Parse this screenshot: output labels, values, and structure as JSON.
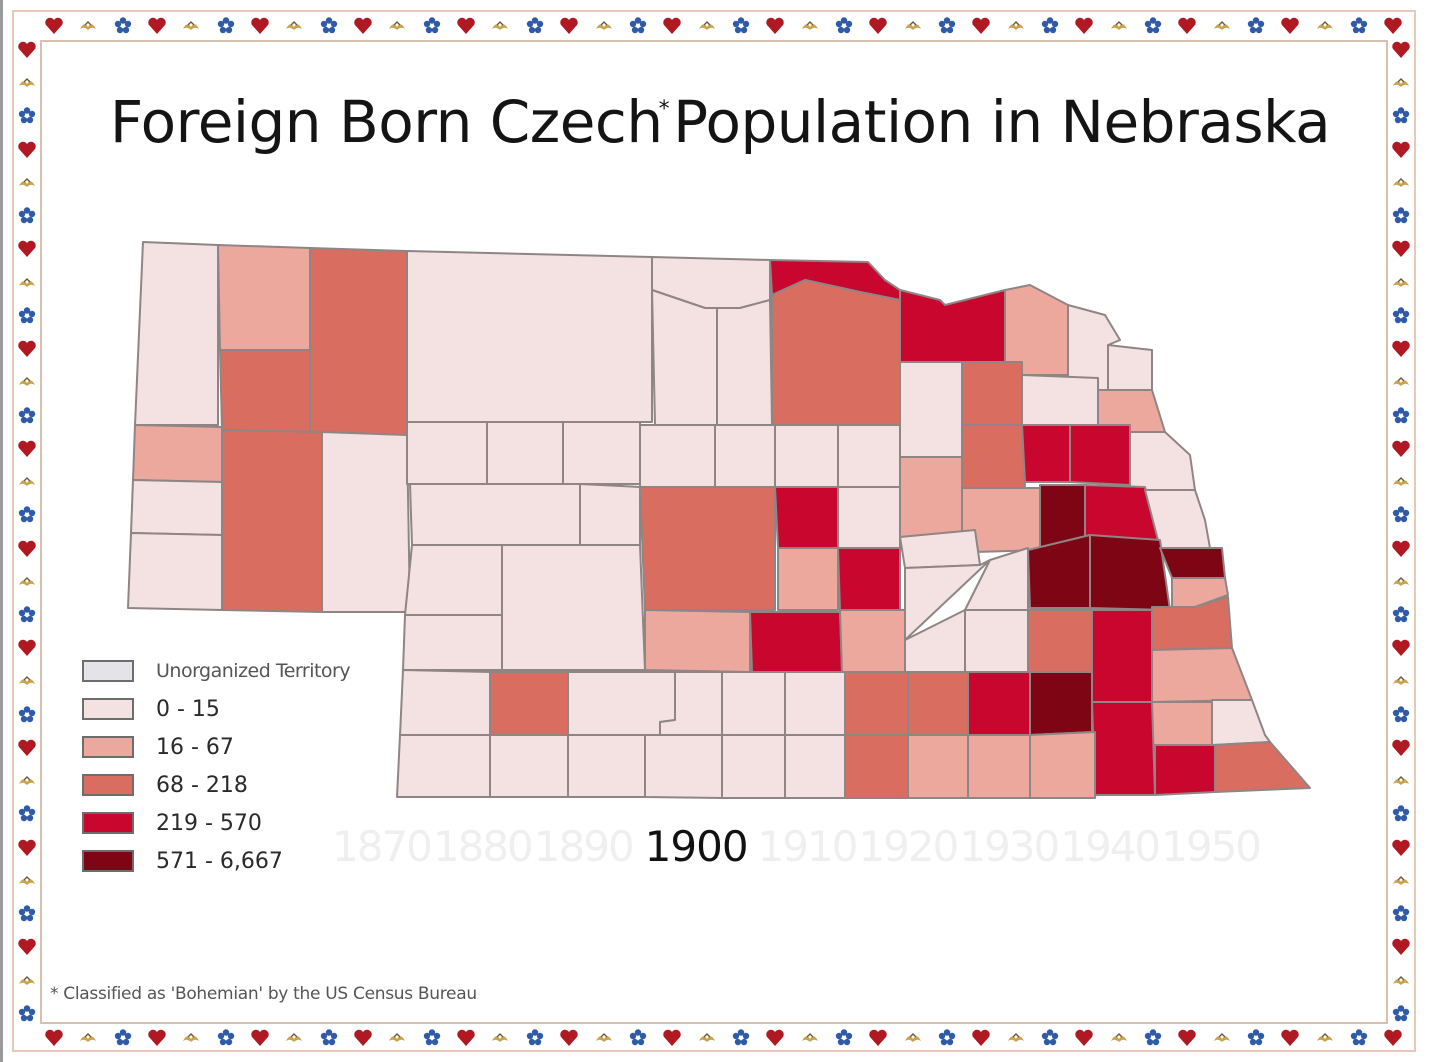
{
  "title": {
    "main_part1": "Foreign Born Czech",
    "asterisk": "*",
    "main_part2": "Population in Nebraska"
  },
  "legend": {
    "items": [
      {
        "label": "Unorganized Territory",
        "color": "#e4e4e8"
      },
      {
        "label": "0 - 15",
        "color": "#f4e2e2"
      },
      {
        "label": "16 - 67",
        "color": "#eda89d"
      },
      {
        "label": "68 - 218",
        "color": "#d96e60"
      },
      {
        "label": "219 - 570",
        "color": "#c8062e"
      },
      {
        "label": "571 - 6,667",
        "color": "#7d0514"
      }
    ]
  },
  "timeline": {
    "years": [
      "1870",
      "1880",
      "1890",
      "1900",
      "1910",
      "1920",
      "1930",
      "1940",
      "1950"
    ],
    "selected": "1900"
  },
  "footnote": "* Classified as 'Bohemian' by the US Census Bureau",
  "colors": {
    "county_border": "#8f8585",
    "frame": "#d9bfae",
    "heart": "#b01822",
    "flower": "#2f5aa8",
    "bird": "#c9a24a"
  },
  "chart_data": {
    "type": "choropleth",
    "title": "Foreign Born Czech* Population in Nebraska",
    "year": "1900",
    "classes": [
      "Unorganized Territory",
      "0 - 15",
      "16 - 67",
      "68 - 218",
      "219 - 570",
      "571 - 6,667"
    ],
    "class_colors": [
      "#e4e4e8",
      "#f4e2e2",
      "#eda89d",
      "#d96e60",
      "#c8062e",
      "#7d0514"
    ],
    "note": "* Classified as 'Bohemian' by the US Census Bureau",
    "counties": [
      {
        "id": "nw-1",
        "class": 1
      },
      {
        "id": "nw-2",
        "class": 2
      },
      {
        "id": "nw-3",
        "class": 3
      },
      {
        "id": "nw-4",
        "class": 3
      },
      {
        "id": "panhandle-w1",
        "class": 2
      },
      {
        "id": "panhandle-w2",
        "class": 1
      },
      {
        "id": "panhandle-w3",
        "class": 1
      },
      {
        "id": "panhandle-c",
        "class": 3
      },
      {
        "id": "panhandle-e",
        "class": 1
      },
      {
        "id": "sandhills-n",
        "class": 1
      },
      {
        "id": "knox-n",
        "class": 4
      },
      {
        "id": "holt",
        "class": 3
      },
      {
        "id": "knox",
        "class": 4
      },
      {
        "id": "custer",
        "class": 3
      },
      {
        "id": "valley",
        "class": 4
      },
      {
        "id": "howard",
        "class": 4
      },
      {
        "id": "buffalo-e",
        "class": 4
      },
      {
        "id": "hall-area",
        "class": 4
      },
      {
        "id": "colfax",
        "class": 5
      },
      {
        "id": "butler",
        "class": 5
      },
      {
        "id": "saunders",
        "class": 5
      },
      {
        "id": "douglas",
        "class": 5
      },
      {
        "id": "saline",
        "class": 5
      },
      {
        "id": "saline-e",
        "class": 4
      },
      {
        "id": "gage",
        "class": 4
      },
      {
        "id": "pawnee",
        "class": 4
      },
      {
        "id": "richardson",
        "class": 3
      }
    ]
  }
}
